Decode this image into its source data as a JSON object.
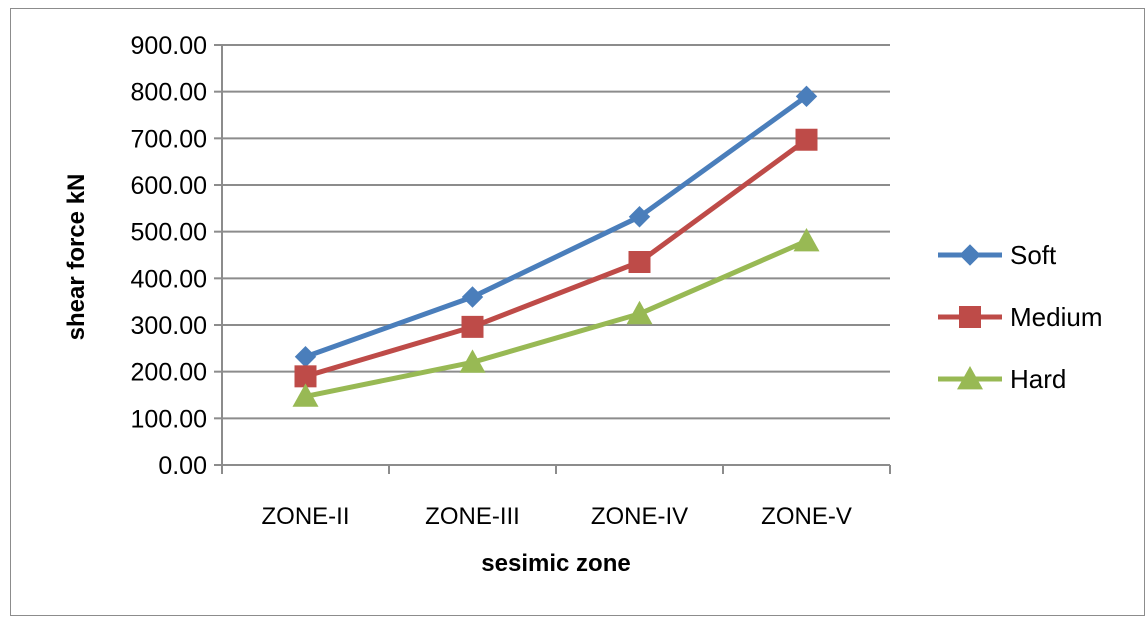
{
  "chart_data": {
    "type": "line",
    "title": "",
    "xlabel": "sesimic zone",
    "ylabel": "shear force kN",
    "ylim": [
      0,
      900
    ],
    "y_ticks": [
      "0.00",
      "100.00",
      "200.00",
      "300.00",
      "400.00",
      "500.00",
      "600.00",
      "700.00",
      "800.00",
      "900.00"
    ],
    "y_tick_values": [
      0,
      100,
      200,
      300,
      400,
      500,
      600,
      700,
      800,
      900
    ],
    "categories": [
      "ZONE-II",
      "ZONE-III",
      "ZONE-IV",
      "ZONE-V"
    ],
    "grid": true,
    "legend_position": "right",
    "series": [
      {
        "name": "Soft",
        "values": [
          232,
          360,
          532,
          790
        ],
        "color": "#4a7ebb",
        "marker": "diamond"
      },
      {
        "name": "Medium",
        "values": [
          190,
          296,
          435,
          697
        ],
        "color": "#be4b48",
        "marker": "square"
      },
      {
        "name": "Hard",
        "values": [
          147,
          220,
          324,
          480
        ],
        "color": "#98b954",
        "marker": "triangle"
      }
    ]
  }
}
